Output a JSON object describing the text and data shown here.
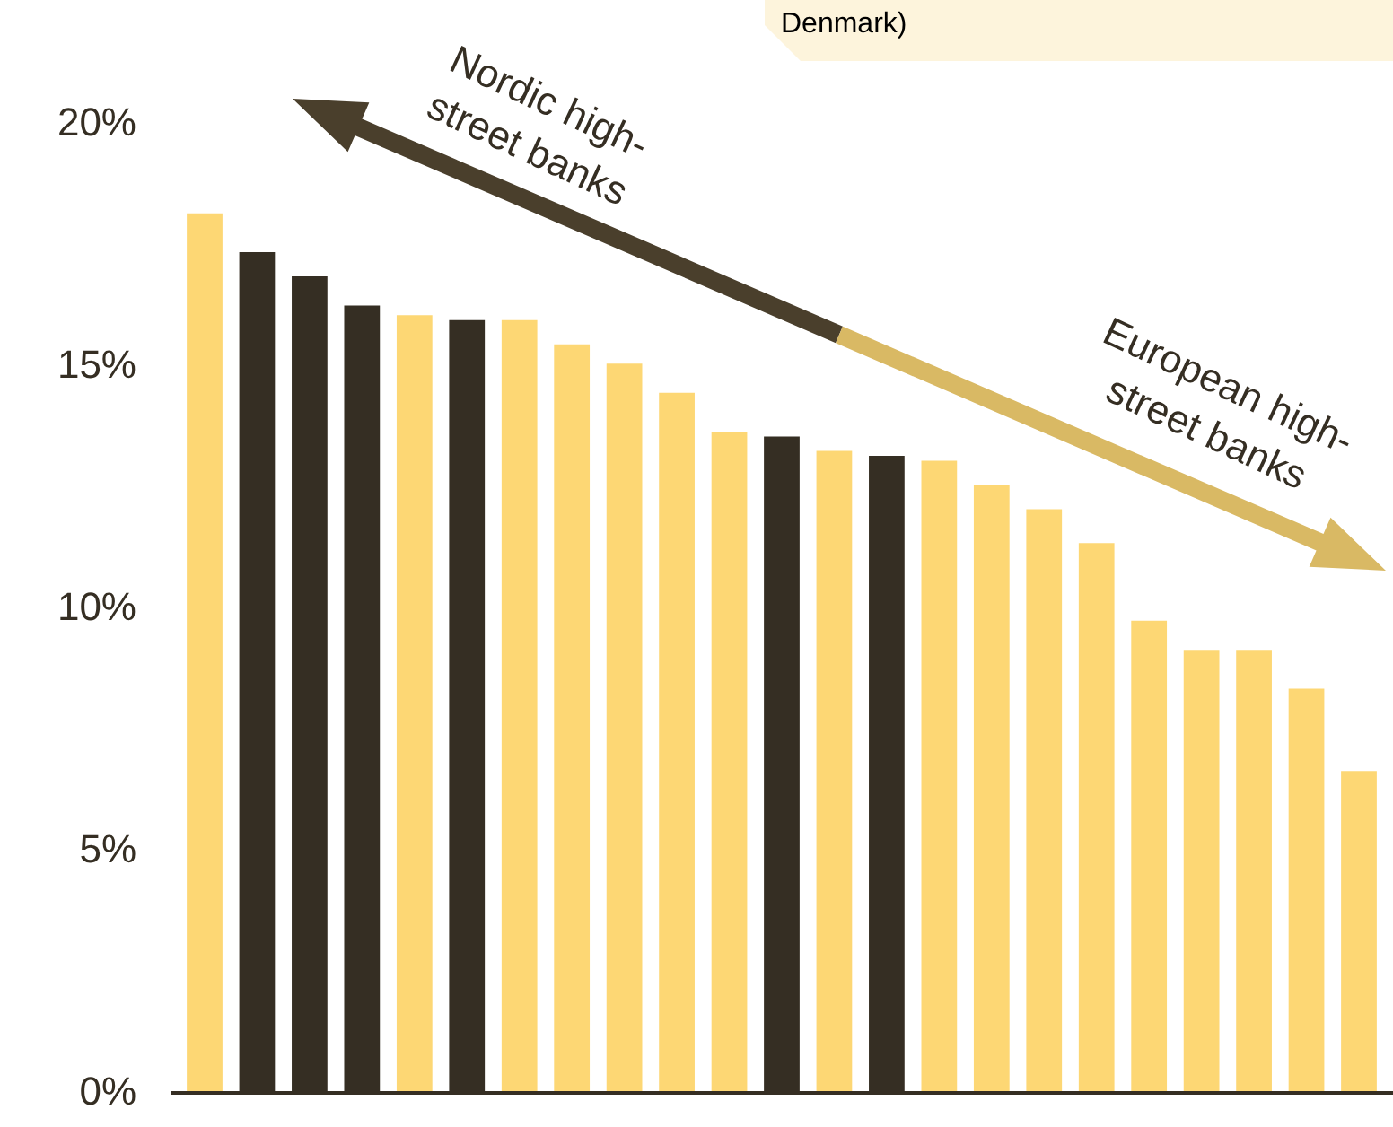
{
  "chart_data": {
    "type": "bar",
    "categories": [
      null,
      null,
      null,
      null,
      null,
      null,
      null,
      null,
      null,
      null,
      null,
      null,
      null,
      null,
      null,
      null,
      null,
      null,
      null,
      null,
      null,
      null,
      null
    ],
    "values": [
      18.1,
      17.3,
      16.8,
      16.2,
      16.0,
      15.9,
      15.9,
      15.4,
      15.0,
      14.4,
      13.6,
      13.5,
      13.2,
      13.1,
      13.0,
      12.5,
      12.0,
      11.3,
      9.7,
      9.1,
      9.1,
      8.3,
      6.6
    ],
    "colors": [
      "#fdd774",
      "#352e23",
      "#352e23",
      "#352e23",
      "#fdd774",
      "#352e23",
      "#fdd774",
      "#fdd774",
      "#fdd774",
      "#fdd774",
      "#fdd774",
      "#352e23",
      "#fdd774",
      "#352e23",
      "#fdd774",
      "#fdd774",
      "#fdd774",
      "#fdd774",
      "#fdd774",
      "#fdd774",
      "#fdd774",
      "#fdd774",
      "#fdd774"
    ],
    "ylim": [
      0,
      22.5
    ],
    "yticks": [
      {
        "value": 0,
        "label": "0%"
      },
      {
        "value": 5,
        "label": "5%"
      },
      {
        "value": 10,
        "label": "10%"
      },
      {
        "value": 15,
        "label": "15%"
      },
      {
        "value": 20,
        "label": "20%"
      }
    ],
    "tick_labels": "y",
    "grid": false,
    "annotations": [
      "Denmark)",
      "Nordic high-\nstreet banks",
      "European high-\nstreet banks"
    ]
  }
}
